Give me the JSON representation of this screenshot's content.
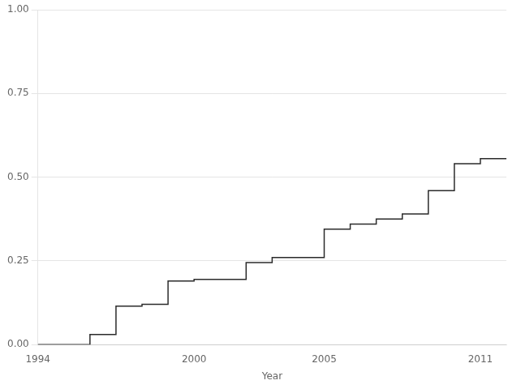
{
  "chart_data": {
    "type": "line",
    "x": [
      1994,
      1996,
      1996,
      1997,
      1997,
      1998,
      1998,
      1999,
      1999,
      2000,
      2000,
      2001,
      2001,
      2002,
      2002,
      2003,
      2003,
      2004,
      2004,
      2005,
      2005,
      2006,
      2006,
      2007,
      2007,
      2008,
      2008,
      2009,
      2009,
      2010,
      2010,
      2011,
      2011,
      2012
    ],
    "values": [
      0.0,
      0.0,
      0.03,
      0.03,
      0.115,
      0.115,
      0.12,
      0.12,
      0.19,
      0.19,
      0.195,
      0.195,
      0.195,
      0.195,
      0.245,
      0.245,
      0.26,
      0.26,
      0.26,
      0.26,
      0.345,
      0.345,
      0.36,
      0.36,
      0.375,
      0.375,
      0.39,
      0.39,
      0.46,
      0.46,
      0.54,
      0.54,
      0.555,
      0.555
    ],
    "color": "#2b2b2b",
    "xlabel": "Year",
    "xlim": [
      1994,
      2012
    ],
    "xticks": [
      1994,
      2000,
      2005,
      2011
    ],
    "ylim": [
      0.0,
      1.0
    ],
    "yticks": [
      {
        "value": 0.0,
        "label": "0.00"
      },
      {
        "value": 0.25,
        "label": "0.25"
      },
      {
        "value": 0.5,
        "label": "0.50"
      },
      {
        "value": 0.75,
        "label": "0.75"
      },
      {
        "value": 1.0,
        "label": "1.00"
      }
    ],
    "grid": "y"
  }
}
